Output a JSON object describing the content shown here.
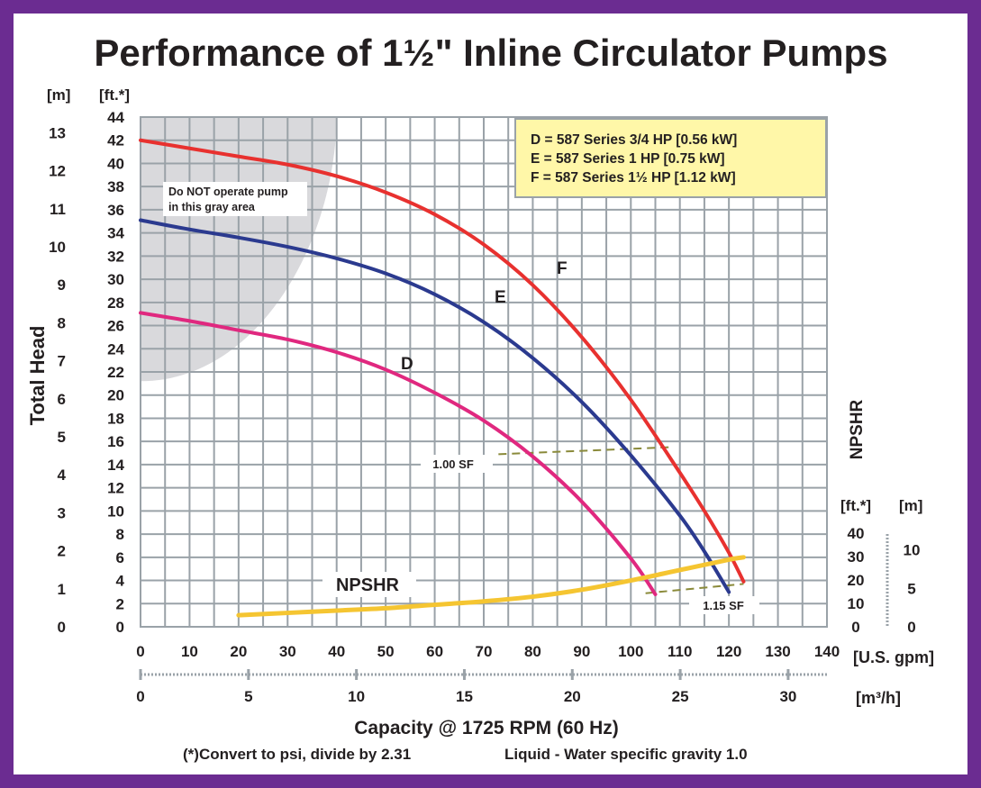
{
  "chart_data": {
    "type": "line",
    "title": "Performance of 1½\" Inline Circulator Pumps",
    "xlabel": "Capacity @ 1725 RPM (60 Hz)",
    "ylabel": "Total Head",
    "y_right_label": "NPSHR",
    "footnote_left": "(*)Convert to psi, divide by 2.31",
    "footnote_right": "Liquid - Water specific gravity 1.0",
    "x_unit_gpm": "[U.S. gpm]",
    "x_unit_m3h": "[m³/h]",
    "y_unit_m": "[m]",
    "y_unit_ft": "[ft.*]",
    "npshr_unit_ft": "[ft.*]",
    "npshr_unit_m": "[m]",
    "xlim": [
      0,
      140
    ],
    "ylim": [
      0,
      44
    ],
    "grid": true,
    "x_ticks_gpm": [
      0,
      10,
      20,
      30,
      40,
      50,
      60,
      70,
      80,
      90,
      100,
      110,
      120,
      130,
      140
    ],
    "x_ticks_m3h": [
      0,
      5,
      10,
      15,
      20,
      25,
      30
    ],
    "y_ticks_ft": [
      0,
      2,
      4,
      6,
      8,
      10,
      12,
      14,
      16,
      18,
      20,
      22,
      24,
      26,
      28,
      30,
      32,
      34,
      36,
      38,
      40,
      42,
      44
    ],
    "y_ticks_m": [
      0,
      1,
      2,
      3,
      4,
      5,
      6,
      7,
      8,
      9,
      10,
      11,
      12,
      13
    ],
    "npshr_ticks_ft": [
      0,
      10,
      20,
      30,
      40
    ],
    "npshr_ticks_m": [
      0,
      5,
      10
    ],
    "legend": {
      "placement": "top-right",
      "entries": [
        "D = 587 Series 3/4 HP [0.56 kW]",
        "E = 587 Series 1 HP [0.75 kW]",
        "F = 587 Series 1½ HP [1.12 kW]"
      ]
    },
    "annotations": {
      "gray_area": "Do NOT operate pump in this gray area",
      "sf_100": "1.00 SF",
      "sf_115": "1.15 SF",
      "npshr": "NPSHR"
    },
    "series": [
      {
        "name": "F",
        "color": "#e8312f",
        "x": [
          0,
          10,
          20,
          30,
          40,
          50,
          60,
          70,
          80,
          90,
          100,
          110,
          115,
          120,
          123
        ],
        "y": [
          42.0,
          41.3,
          40.6,
          39.9,
          38.9,
          37.5,
          35.6,
          33.0,
          29.5,
          25.0,
          19.6,
          13.3,
          10.0,
          6.4,
          3.9
        ]
      },
      {
        "name": "E",
        "color": "#2b3a8f",
        "x": [
          0,
          10,
          20,
          30,
          40,
          50,
          60,
          70,
          80,
          90,
          100,
          110,
          115,
          120
        ],
        "y": [
          35.1,
          34.3,
          33.6,
          32.8,
          31.8,
          30.5,
          28.7,
          26.3,
          23.2,
          19.4,
          14.8,
          9.6,
          6.5,
          3.0
        ]
      },
      {
        "name": "D",
        "color": "#e0287f",
        "x": [
          0,
          10,
          20,
          30,
          40,
          50,
          60,
          70,
          80,
          90,
          100,
          105
        ],
        "y": [
          27.1,
          26.4,
          25.6,
          24.8,
          23.7,
          22.2,
          20.2,
          17.8,
          14.7,
          10.8,
          5.9,
          2.8
        ]
      },
      {
        "name": "NPSHR",
        "color": "#f5c531",
        "x": [
          20,
          30,
          40,
          50,
          60,
          70,
          80,
          90,
          100,
          110,
          120,
          123
        ],
        "y": [
          1.0,
          1.2,
          1.4,
          1.6,
          1.9,
          2.2,
          2.6,
          3.2,
          4.0,
          4.9,
          5.8,
          6.0
        ]
      }
    ],
    "sf_lines": [
      {
        "label": "1.00 SF",
        "x": [
          73,
          108
        ],
        "y": [
          14.9,
          15.5
        ]
      },
      {
        "label": "1.15 SF",
        "x": [
          103,
          123
        ],
        "y": [
          2.9,
          3.7
        ]
      }
    ],
    "gray_region": {
      "x": [
        0,
        40,
        0
      ],
      "y": [
        44,
        44,
        21.2
      ]
    }
  }
}
